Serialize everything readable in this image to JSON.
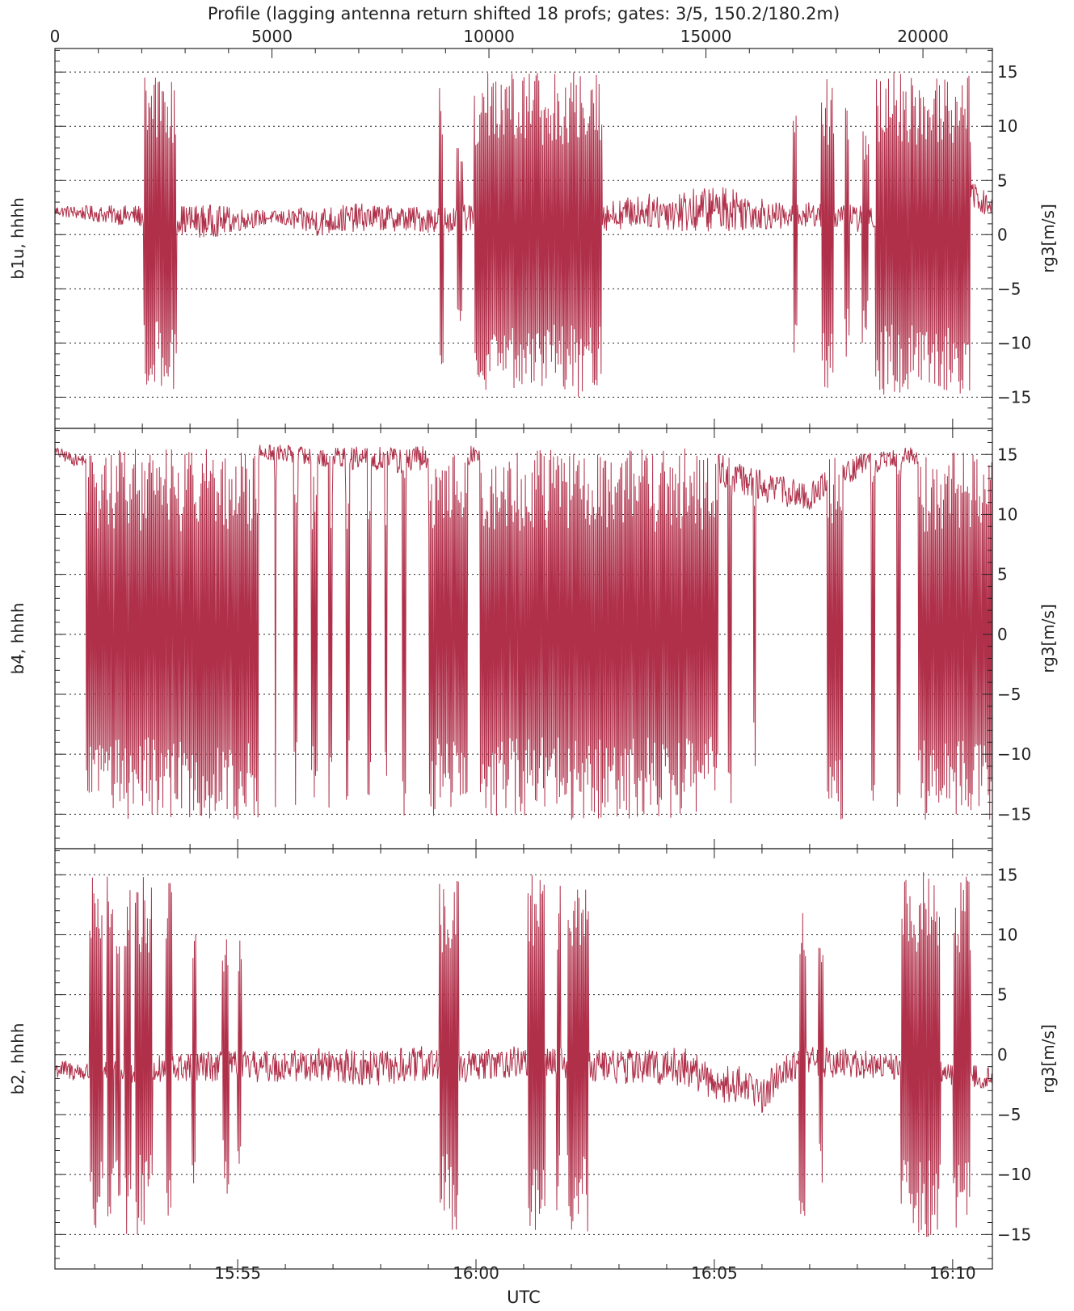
{
  "chart_data": {
    "type": "line",
    "title": "Profile (lagging antenna return shifted 18 profs; gates: 3/5, 150.2/180.2m)",
    "xlabel": "UTC",
    "top_axis": {
      "range": [
        0,
        21600
      ],
      "ticks": [
        0,
        5000,
        10000,
        15000,
        20000
      ],
      "tick_labels": [
        "0",
        "5000",
        "10000",
        "15000",
        "20000"
      ]
    },
    "time_axis": {
      "range": [
        "15:51:10",
        "16:10:50"
      ],
      "ticks": [
        "15:55",
        "16:00",
        "16:05",
        "16:10"
      ]
    },
    "ylim": [
      -17,
      17
    ],
    "yticks": [
      -15,
      -10,
      -5,
      0,
      5,
      10,
      15
    ],
    "ytick_labels": [
      "−15",
      "−10",
      "−5",
      "0",
      "5",
      "10",
      "15"
    ],
    "grid": true,
    "line_color": "#b0304a",
    "panels": [
      {
        "ylabel": "b1u, hhhh",
        "ylabel_right": "rg3[m/s]",
        "baseline": [
          [
            0,
            2.2
          ],
          [
            1000,
            1.9
          ],
          [
            2000,
            1.7
          ],
          [
            3500,
            1.2
          ],
          [
            5000,
            1.6
          ],
          [
            6000,
            1.2
          ],
          [
            7000,
            1.6
          ],
          [
            8500,
            1.4
          ],
          [
            9500,
            1.5
          ],
          [
            11000,
            2
          ],
          [
            12800,
            1.8
          ],
          [
            13500,
            2.2
          ],
          [
            14500,
            2.2
          ],
          [
            15500,
            2.5
          ],
          [
            16500,
            1.8
          ],
          [
            17000,
            1.5
          ],
          [
            17500,
            1.9
          ],
          [
            18500,
            1.5
          ],
          [
            19500,
            2.5
          ],
          [
            20500,
            3.5
          ],
          [
            21200,
            3.5
          ],
          [
            21600,
            2.4
          ]
        ],
        "noise": [
          [
            0,
            0.5
          ],
          [
            2500,
            1.2
          ],
          [
            3500,
            1.6
          ],
          [
            5000,
            0.6
          ],
          [
            6000,
            1.4
          ],
          [
            8000,
            1.2
          ],
          [
            10000,
            1.3
          ],
          [
            13500,
            1.5
          ],
          [
            14500,
            2
          ],
          [
            15500,
            2.2
          ],
          [
            16500,
            1.3
          ],
          [
            17500,
            1.2
          ],
          [
            19500,
            1.3
          ],
          [
            21600,
            1.2
          ]
        ],
        "bursts": [
          [
            2050,
            2800,
            14.5
          ],
          [
            8850,
            8950,
            14
          ],
          [
            9250,
            9400,
            8
          ],
          [
            9650,
            12600,
            15
          ],
          [
            17000,
            17100,
            15
          ],
          [
            17650,
            17950,
            15
          ],
          [
            18200,
            18300,
            12
          ],
          [
            18600,
            18750,
            10
          ],
          [
            18900,
            21100,
            15
          ]
        ]
      },
      {
        "ylabel": "b4, hhhh",
        "ylabel_right": "rg3[m/s]",
        "baseline": [
          [
            0,
            15.2
          ],
          [
            500,
            14.5
          ],
          [
            1500,
            15
          ],
          [
            3000,
            15.2
          ],
          [
            5000,
            15.2
          ],
          [
            6000,
            14.8
          ],
          [
            8000,
            14.5
          ],
          [
            10000,
            15
          ],
          [
            12000,
            15.5
          ],
          [
            15000,
            15.2
          ],
          [
            15600,
            13
          ],
          [
            16200,
            12.5
          ],
          [
            17000,
            11.8
          ],
          [
            17400,
            11.5
          ],
          [
            17900,
            12.8
          ],
          [
            18500,
            14
          ],
          [
            19500,
            14.8
          ],
          [
            20500,
            15
          ],
          [
            21600,
            15.2
          ]
        ],
        "noise": [
          [
            0,
            0.5
          ],
          [
            6000,
            0.8
          ],
          [
            8000,
            1.2
          ],
          [
            12000,
            0.8
          ],
          [
            15500,
            1.5
          ],
          [
            17500,
            1.2
          ],
          [
            19500,
            0.8
          ],
          [
            21600,
            0.5
          ]
        ],
        "bursts": [
          [
            700,
            4700,
            15.5
          ],
          [
            5050,
            5100,
            15.5
          ],
          [
            5500,
            5600,
            15.5
          ],
          [
            5900,
            6050,
            15.5
          ],
          [
            6300,
            6400,
            15.5
          ],
          [
            6700,
            6800,
            15.5
          ],
          [
            7200,
            7300,
            15.5
          ],
          [
            7600,
            7650,
            15.5
          ],
          [
            8000,
            8100,
            15.5
          ],
          [
            8600,
            9500,
            15.5
          ],
          [
            9800,
            15300,
            15.5
          ],
          [
            15500,
            15600,
            15
          ],
          [
            16100,
            16150,
            12
          ],
          [
            17800,
            18150,
            15.5
          ],
          [
            18800,
            18900,
            15
          ],
          [
            19400,
            19500,
            15
          ],
          [
            19900,
            21600,
            15.5
          ]
        ]
      },
      {
        "ylabel": "b2, hhhh",
        "ylabel_right": "rg3[m/s]",
        "baseline": [
          [
            0,
            -1.2
          ],
          [
            800,
            -1.5
          ],
          [
            2000,
            -1.3
          ],
          [
            3500,
            -1
          ],
          [
            5000,
            -1
          ],
          [
            6000,
            -0.8
          ],
          [
            7500,
            -1.2
          ],
          [
            8500,
            -0.8
          ],
          [
            9500,
            -1
          ],
          [
            10500,
            -0.6
          ],
          [
            11500,
            -0.5
          ],
          [
            12500,
            -0.9
          ],
          [
            13500,
            -1
          ],
          [
            14500,
            -1
          ],
          [
            15300,
            -2.5
          ],
          [
            16000,
            -2.5
          ],
          [
            16300,
            -3.5
          ],
          [
            16800,
            -1
          ],
          [
            17500,
            -0.6
          ],
          [
            18500,
            -0.8
          ],
          [
            19500,
            -1
          ],
          [
            21600,
            -2
          ]
        ],
        "noise": [
          [
            0,
            0.8
          ],
          [
            2500,
            1.2
          ],
          [
            4000,
            1.3
          ],
          [
            6000,
            1.4
          ],
          [
            8000,
            1.6
          ],
          [
            10000,
            1.3
          ],
          [
            12000,
            1.4
          ],
          [
            14500,
            1.6
          ],
          [
            16500,
            1.5
          ],
          [
            18500,
            1.2
          ],
          [
            21600,
            0.9
          ]
        ],
        "bursts": [
          [
            800,
            1100,
            15
          ],
          [
            1200,
            1350,
            15
          ],
          [
            1400,
            1500,
            15
          ],
          [
            1600,
            1750,
            15
          ],
          [
            1850,
            2250,
            15
          ],
          [
            2550,
            2700,
            15.5
          ],
          [
            3150,
            3250,
            11
          ],
          [
            3850,
            4000,
            12
          ],
          [
            4200,
            4300,
            10
          ],
          [
            8850,
            9300,
            15
          ],
          [
            10900,
            11300,
            15
          ],
          [
            11550,
            11650,
            15
          ],
          [
            11800,
            12300,
            15
          ],
          [
            17150,
            17300,
            14
          ],
          [
            17600,
            17700,
            12
          ],
          [
            19500,
            20400,
            15.5
          ],
          [
            20700,
            21100,
            15
          ]
        ]
      }
    ]
  }
}
